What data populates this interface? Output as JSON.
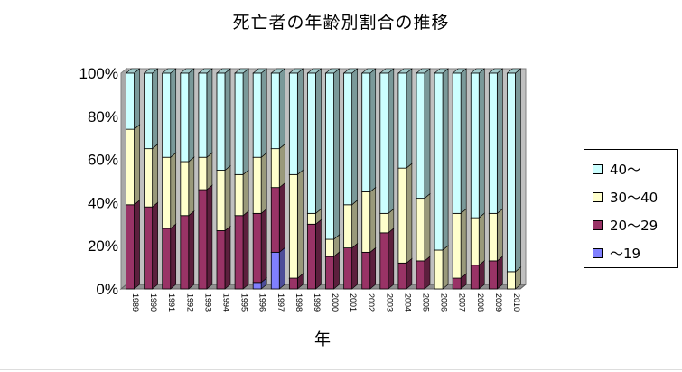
{
  "chart_data": {
    "type": "bar",
    "stacked": true,
    "percent_stacked": true,
    "three_d": true,
    "title": "死亡者の年齢別割合の推移",
    "xlabel": "年",
    "ylabel": "",
    "ylim": [
      0,
      100
    ],
    "yticks": [
      "0%",
      "20%",
      "40%",
      "60%",
      "80%",
      "100%"
    ],
    "grid": false,
    "legend_position": "right",
    "categories": [
      "1989",
      "1990",
      "1991",
      "1992",
      "1993",
      "1994",
      "1995",
      "1996",
      "1997",
      "1998",
      "1999",
      "2000",
      "2001",
      "2002",
      "2003",
      "2004",
      "2005",
      "2006",
      "2007",
      "2008",
      "2009",
      "2010"
    ],
    "series": [
      {
        "name": "～19",
        "color": "#8080ff",
        "values": [
          0,
          0,
          0,
          0,
          0,
          0,
          0,
          3,
          17,
          0,
          0,
          0,
          0,
          0,
          0,
          0,
          0,
          0,
          0,
          0,
          0,
          0
        ]
      },
      {
        "name": "20～29",
        "color": "#993366",
        "values": [
          39,
          38,
          28,
          34,
          46,
          27,
          34,
          32,
          30,
          5,
          30,
          15,
          19,
          17,
          26,
          12,
          13,
          0,
          5,
          11,
          13,
          0
        ]
      },
      {
        "name": "30～40",
        "color": "#ffffcc",
        "values": [
          35,
          27,
          33,
          25,
          15,
          28,
          19,
          26,
          18,
          48,
          5,
          8,
          20,
          28,
          9,
          44,
          29,
          18,
          30,
          22,
          22,
          8
        ]
      },
      {
        "name": "40～",
        "color": "#ccffff",
        "values": [
          26,
          35,
          39,
          41,
          39,
          45,
          47,
          39,
          35,
          47,
          65,
          77,
          61,
          55,
          65,
          44,
          58,
          82,
          65,
          67,
          65,
          92
        ]
      }
    ]
  }
}
